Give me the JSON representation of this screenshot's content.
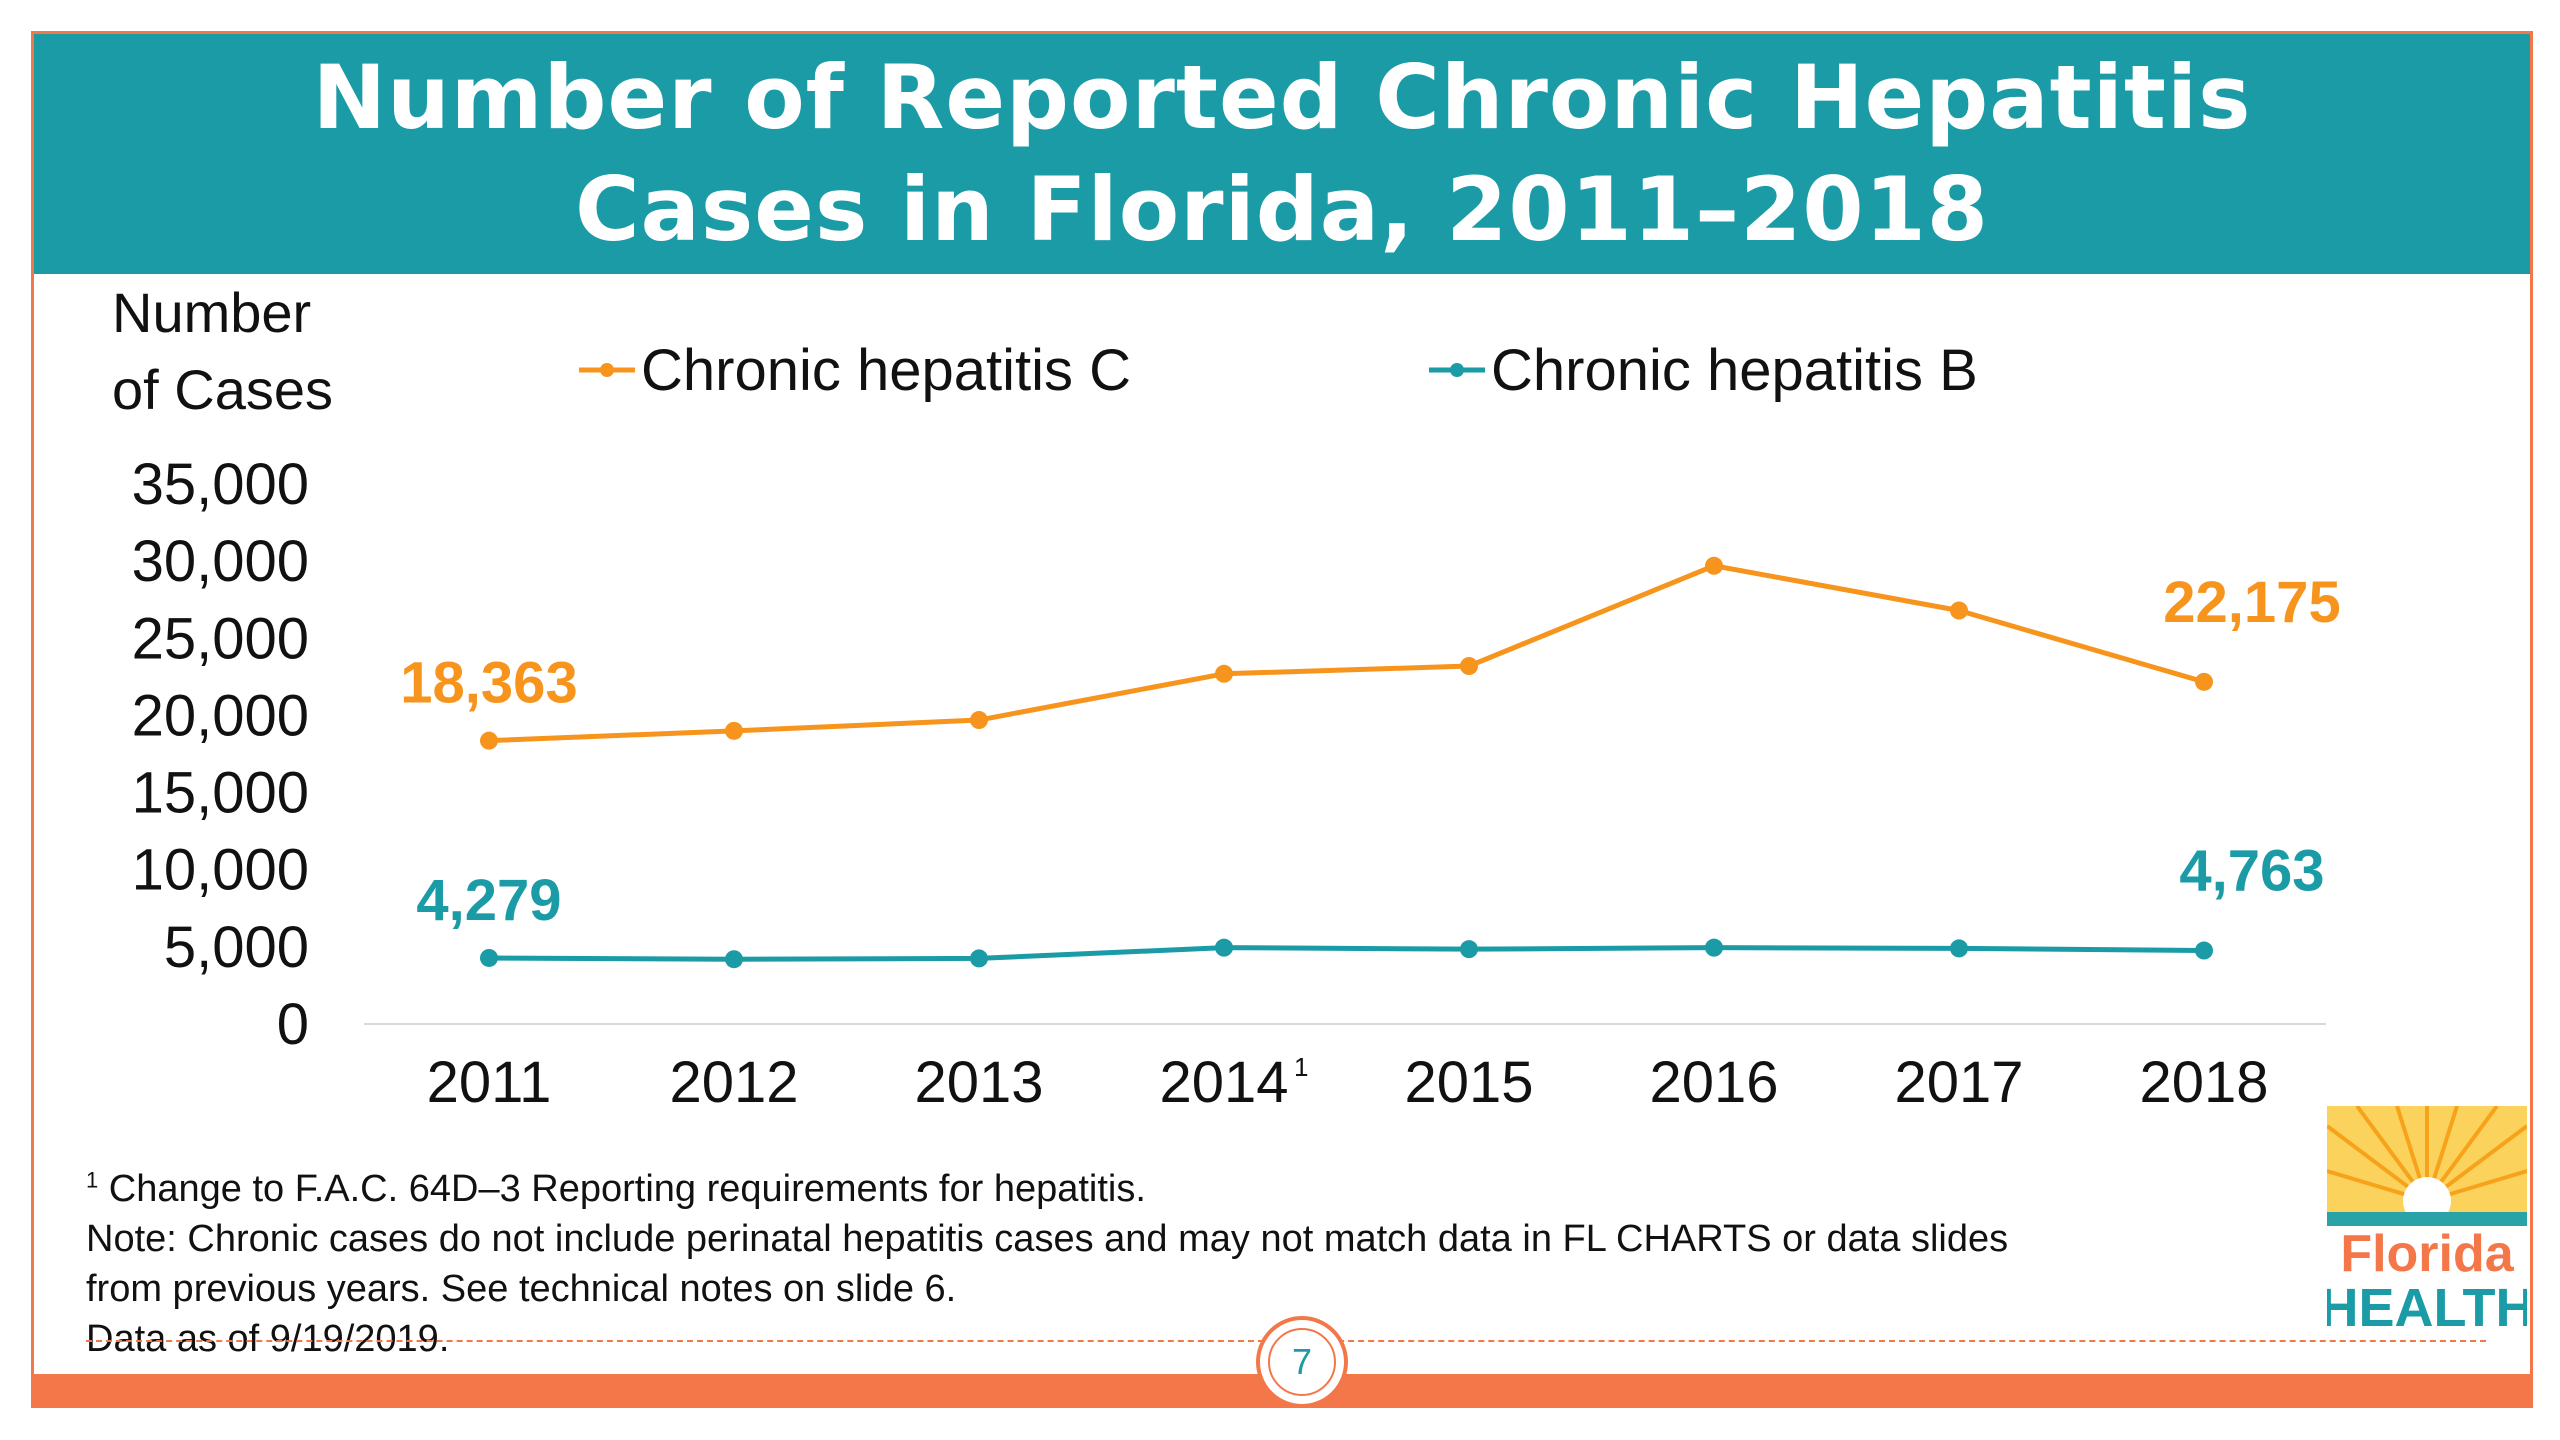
{
  "title": "Number of Reported Chronic Hepatitis\nCases in Florida, 2011–2018",
  "colors": {
    "accent_teal": "#1a9ba6",
    "accent_orange": "#f37748",
    "hep_c": "#f7941d",
    "hep_b": "#1a9ba6"
  },
  "chart_data": {
    "type": "line",
    "title": "Number of Reported Chronic Hepatitis Cases in Florida, 2011–2018",
    "ylabel_lines": [
      "Number",
      "of Cases"
    ],
    "categories": [
      "2011",
      "2012",
      "2013",
      "2014",
      "2015",
      "2016",
      "2017",
      "2018"
    ],
    "category_superscripts": {
      "2014": "1"
    },
    "ylim": [
      0,
      35000
    ],
    "yticks": [
      0,
      5000,
      10000,
      15000,
      20000,
      25000,
      30000,
      35000
    ],
    "ytick_labels": [
      "0",
      "5,000",
      "10,000",
      "15,000",
      "20,000",
      "25,000",
      "30,000",
      "35,000"
    ],
    "grid": false,
    "legend_position": "top",
    "series": [
      {
        "name": "Chronic hepatitis C",
        "color": "#f7941d",
        "values": [
          18363,
          19000,
          19700,
          22700,
          23200,
          29700,
          26800,
          22175
        ],
        "labels": {
          "first": "18,363",
          "last": "22,175"
        }
      },
      {
        "name": "Chronic hepatitis B",
        "color": "#1a9ba6",
        "values": [
          4279,
          4200,
          4250,
          4950,
          4850,
          4950,
          4900,
          4763
        ],
        "labels": {
          "first": "4,279",
          "last": "4,763"
        }
      }
    ]
  },
  "footnotes": {
    "fn1_marker": "1",
    "fn1_text": " Change to F.A.C. 64D–3 Reporting requirements for hepatitis.",
    "note_line1": "Note: Chronic cases do not include perinatal hepatitis cases and may not match data in FL CHARTS or data slides",
    "note_line2": "from previous years. See technical notes on slide 6.",
    "data_as_of": "Data as of 9/19/2019."
  },
  "page_number": "7",
  "logo": {
    "line1": "Florida",
    "line2": "HEALTH"
  }
}
